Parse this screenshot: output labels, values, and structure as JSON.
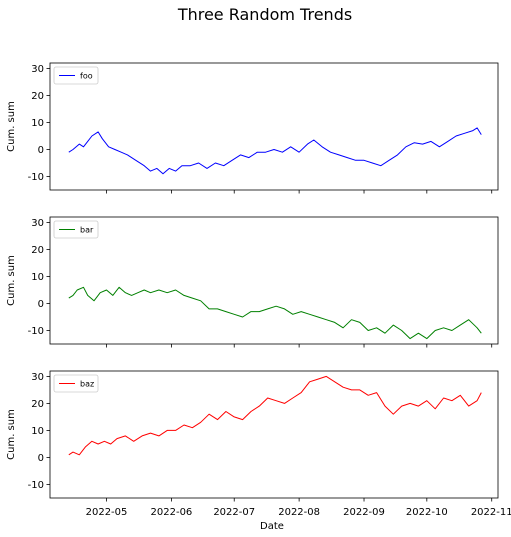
{
  "figure": {
    "suptitle": "Three Random Trends",
    "xlabel": "Date"
  },
  "chart_data": [
    {
      "type": "line",
      "ylabel": "Cum. sum",
      "ylim": [
        -15,
        32
      ],
      "yticks": [
        -10,
        0,
        10,
        20,
        30
      ],
      "xlim": [
        "2022-04-04",
        "2022-11-04"
      ],
      "xticks": [
        "2022-05-01",
        "2022-06-01",
        "2022-07-01",
        "2022-08-01",
        "2022-09-01",
        "2022-10-01",
        "2022-11-01"
      ],
      "xtick_labels": [
        "2022-05",
        "2022-06",
        "2022-07",
        "2022-08",
        "2022-09",
        "2022-10",
        "2022-11"
      ],
      "show_xtick_labels": false,
      "legend": "upper-left",
      "grid": false,
      "series": [
        {
          "name": "foo",
          "color": "#0000ff",
          "x": [
            "2022-04-13",
            "2022-04-15",
            "2022-04-18",
            "2022-04-20",
            "2022-04-22",
            "2022-04-24",
            "2022-04-27",
            "2022-04-29",
            "2022-05-02",
            "2022-05-05",
            "2022-05-08",
            "2022-05-11",
            "2022-05-15",
            "2022-05-19",
            "2022-05-22",
            "2022-05-25",
            "2022-05-28",
            "2022-05-31",
            "2022-06-03",
            "2022-06-06",
            "2022-06-10",
            "2022-06-14",
            "2022-06-18",
            "2022-06-22",
            "2022-06-26",
            "2022-06-30",
            "2022-07-04",
            "2022-07-08",
            "2022-07-12",
            "2022-07-16",
            "2022-07-20",
            "2022-07-24",
            "2022-07-28",
            "2022-08-01",
            "2022-08-05",
            "2022-08-08",
            "2022-08-12",
            "2022-08-16",
            "2022-08-20",
            "2022-08-24",
            "2022-08-28",
            "2022-09-01",
            "2022-09-05",
            "2022-09-09",
            "2022-09-13",
            "2022-09-17",
            "2022-09-21",
            "2022-09-25",
            "2022-09-29",
            "2022-10-03",
            "2022-10-07",
            "2022-10-11",
            "2022-10-15",
            "2022-10-19",
            "2022-10-23",
            "2022-10-25",
            "2022-10-27"
          ],
          "y": [
            -1,
            0,
            2,
            1,
            3,
            5,
            6.5,
            4,
            1,
            0,
            -1,
            -2,
            -4,
            -6,
            -8,
            -7,
            -9,
            -7,
            -8,
            -6,
            -6,
            -5,
            -7,
            -5,
            -6,
            -4,
            -2,
            -3,
            -1,
            -1,
            0,
            -1,
            1,
            -1,
            2,
            3.5,
            1,
            -1,
            -2,
            -3,
            -4,
            -4,
            -5,
            -6,
            -4,
            -2,
            1,
            2.5,
            2,
            3,
            1,
            3,
            5,
            6,
            7,
            8,
            5.5
          ]
        }
      ]
    },
    {
      "type": "line",
      "ylabel": "Cum. sum",
      "ylim": [
        -15,
        32
      ],
      "yticks": [
        -10,
        0,
        10,
        20,
        30
      ],
      "xlim": [
        "2022-04-04",
        "2022-11-04"
      ],
      "xticks": [
        "2022-05-01",
        "2022-06-01",
        "2022-07-01",
        "2022-08-01",
        "2022-09-01",
        "2022-10-01",
        "2022-11-01"
      ],
      "xtick_labels": [
        "2022-05",
        "2022-06",
        "2022-07",
        "2022-08",
        "2022-09",
        "2022-10",
        "2022-11"
      ],
      "show_xtick_labels": false,
      "legend": "upper-left",
      "grid": false,
      "series": [
        {
          "name": "bar",
          "color": "#008000",
          "x": [
            "2022-04-13",
            "2022-04-15",
            "2022-04-17",
            "2022-04-20",
            "2022-04-22",
            "2022-04-25",
            "2022-04-28",
            "2022-05-01",
            "2022-05-04",
            "2022-05-07",
            "2022-05-10",
            "2022-05-13",
            "2022-05-16",
            "2022-05-19",
            "2022-05-22",
            "2022-05-26",
            "2022-05-30",
            "2022-06-03",
            "2022-06-07",
            "2022-06-11",
            "2022-06-15",
            "2022-06-19",
            "2022-06-23",
            "2022-06-27",
            "2022-07-01",
            "2022-07-05",
            "2022-07-09",
            "2022-07-13",
            "2022-07-17",
            "2022-07-21",
            "2022-07-25",
            "2022-07-29",
            "2022-08-02",
            "2022-08-06",
            "2022-08-10",
            "2022-08-14",
            "2022-08-18",
            "2022-08-22",
            "2022-08-26",
            "2022-08-30",
            "2022-09-03",
            "2022-09-07",
            "2022-09-11",
            "2022-09-15",
            "2022-09-19",
            "2022-09-23",
            "2022-09-27",
            "2022-10-01",
            "2022-10-05",
            "2022-10-09",
            "2022-10-13",
            "2022-10-17",
            "2022-10-21",
            "2022-10-25",
            "2022-10-27"
          ],
          "y": [
            2,
            3,
            5,
            6,
            3,
            1,
            4,
            5,
            3,
            6,
            4,
            3,
            4,
            5,
            4,
            5,
            4,
            5,
            3,
            2,
            1,
            -2,
            -2,
            -3,
            -4,
            -5,
            -3,
            -3,
            -2,
            -1,
            -2,
            -4,
            -3,
            -4,
            -5,
            -6,
            -7,
            -9,
            -6,
            -7,
            -10,
            -9,
            -11,
            -8,
            -10,
            -13,
            -11,
            -13,
            -10,
            -9,
            -10,
            -8,
            -6,
            -9,
            -11
          ]
        }
      ]
    },
    {
      "type": "line",
      "ylabel": "Cum. sum",
      "ylim": [
        -15,
        32
      ],
      "yticks": [
        -10,
        0,
        10,
        20,
        30
      ],
      "xlim": [
        "2022-04-04",
        "2022-11-04"
      ],
      "xticks": [
        "2022-05-01",
        "2022-06-01",
        "2022-07-01",
        "2022-08-01",
        "2022-09-01",
        "2022-10-01",
        "2022-11-01"
      ],
      "xtick_labels": [
        "2022-05",
        "2022-06",
        "2022-07",
        "2022-08",
        "2022-09",
        "2022-10",
        "2022-11"
      ],
      "show_xtick_labels": true,
      "legend": "upper-left",
      "grid": false,
      "series": [
        {
          "name": "baz",
          "color": "#ff0000",
          "x": [
            "2022-04-13",
            "2022-04-15",
            "2022-04-18",
            "2022-04-21",
            "2022-04-24",
            "2022-04-27",
            "2022-04-30",
            "2022-05-03",
            "2022-05-06",
            "2022-05-10",
            "2022-05-14",
            "2022-05-18",
            "2022-05-22",
            "2022-05-26",
            "2022-05-30",
            "2022-06-03",
            "2022-06-07",
            "2022-06-11",
            "2022-06-15",
            "2022-06-19",
            "2022-06-23",
            "2022-06-27",
            "2022-07-01",
            "2022-07-05",
            "2022-07-09",
            "2022-07-13",
            "2022-07-17",
            "2022-07-21",
            "2022-07-25",
            "2022-07-29",
            "2022-08-02",
            "2022-08-06",
            "2022-08-10",
            "2022-08-14",
            "2022-08-18",
            "2022-08-22",
            "2022-08-26",
            "2022-08-30",
            "2022-09-03",
            "2022-09-07",
            "2022-09-11",
            "2022-09-15",
            "2022-09-19",
            "2022-09-23",
            "2022-09-27",
            "2022-10-01",
            "2022-10-05",
            "2022-10-09",
            "2022-10-13",
            "2022-10-17",
            "2022-10-21",
            "2022-10-25",
            "2022-10-27"
          ],
          "y": [
            1,
            2,
            1,
            4,
            6,
            5,
            6,
            5,
            7,
            8,
            6,
            8,
            9,
            8,
            10,
            10,
            12,
            11,
            13,
            16,
            14,
            17,
            15,
            14,
            17,
            19,
            22,
            21,
            20,
            22,
            24,
            28,
            29,
            30,
            28,
            26,
            25,
            25,
            23,
            24,
            19,
            16,
            19,
            20,
            19,
            21,
            18,
            22,
            21,
            23,
            19,
            21,
            24
          ]
        }
      ]
    }
  ]
}
